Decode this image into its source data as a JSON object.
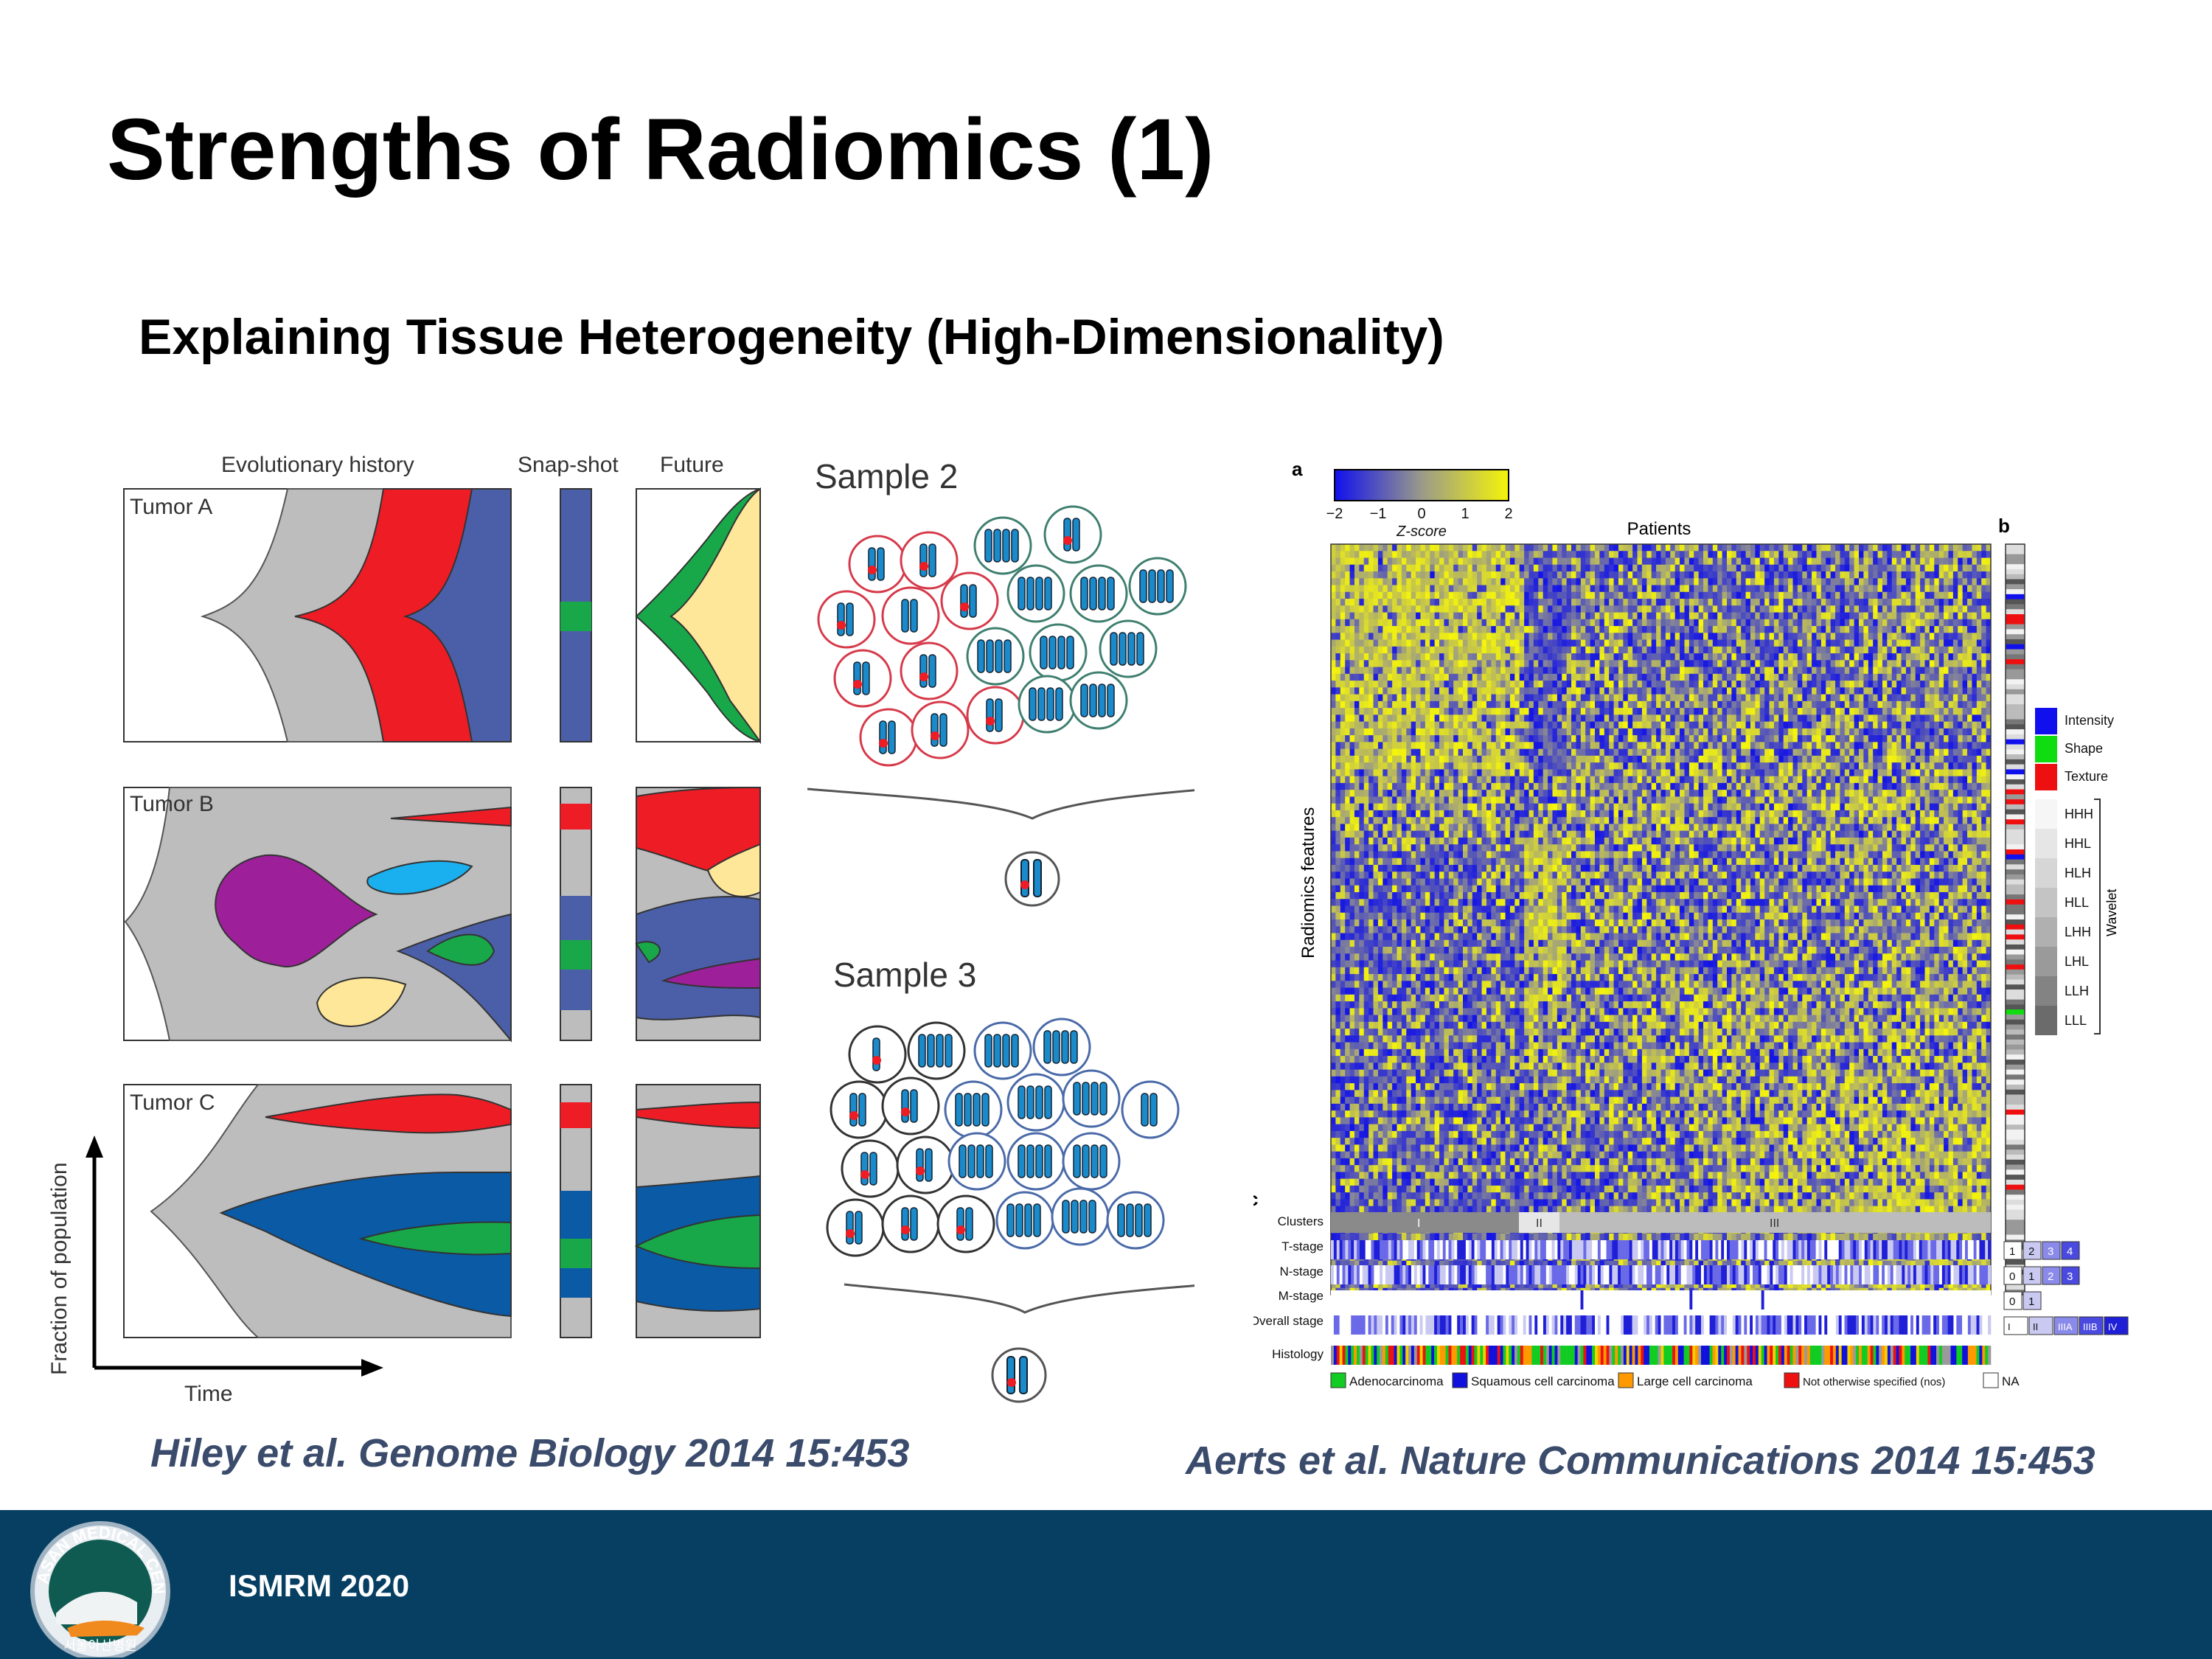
{
  "slide": {
    "title": "Strengths of Radiomics (1)",
    "subtitle": "Explaining Tissue Heterogeneity (High-Dimensionality)",
    "citation_left": "Hiley et al. Genome Biology 2014 15:453",
    "citation_right": "Aerts et al. Nature Communications 2014 15:453"
  },
  "footer": {
    "conference": "ISMRM 2020",
    "logo_text_top": "ASAN MEDICAL CENTER",
    "logo_text_bottom": "서울아산병원"
  },
  "left_figure": {
    "header_evolution": "Evolutionary history",
    "header_snapshot": "Snap-shot",
    "header_future": "Future",
    "tumors": [
      "Tumor A",
      "Tumor B",
      "Tumor C"
    ],
    "y_axis_label": "Fraction of population",
    "x_axis_label": "Time",
    "sample_2": "Sample 2",
    "sample_3": "Sample 3"
  },
  "right_figure": {
    "panel_a": "a",
    "panel_b": "b",
    "panel_c": "c",
    "colorbar_ticks": [
      "−2",
      "−1",
      "0",
      "1",
      "2"
    ],
    "colorbar_label": "Z-score",
    "x_label": "Patients",
    "y_label": "Radiomics features",
    "feature_types": [
      {
        "label": "Intensity",
        "color": "#1010ee"
      },
      {
        "label": "Shape",
        "color": "#10dd10"
      },
      {
        "label": "Texture",
        "color": "#ee1010"
      }
    ],
    "wavelet_levels": [
      "HHH",
      "HHL",
      "HLH",
      "HLL",
      "LHH",
      "LHL",
      "LLH",
      "LLL"
    ],
    "wavelet_label": "Wavelet",
    "row_labels": [
      "Clusters",
      "T-stage",
      "N-stage",
      "M-stage",
      "Overall stage",
      "Histology"
    ],
    "clusters": [
      "I",
      "II",
      "III"
    ],
    "t_stage_keys": [
      "1",
      "2",
      "3",
      "4"
    ],
    "n_stage_keys": [
      "0",
      "1",
      "2",
      "3"
    ],
    "m_stage_keys": [
      "0",
      "1"
    ],
    "overall_stage_keys": [
      "I",
      "II",
      "IIIA",
      "IIIB",
      "IV"
    ],
    "histology_legend": [
      {
        "label": "Adenocarcinoma",
        "color": "#11cc22"
      },
      {
        "label": "Squamous cell carcinoma",
        "color": "#1111dd"
      },
      {
        "label": "Large cell carcinoma",
        "color": "#ff9900"
      },
      {
        "label": "Not otherwise specified (nos)",
        "color": "#ee1111"
      },
      {
        "label": "NA",
        "color": "#ffffff"
      }
    ]
  }
}
